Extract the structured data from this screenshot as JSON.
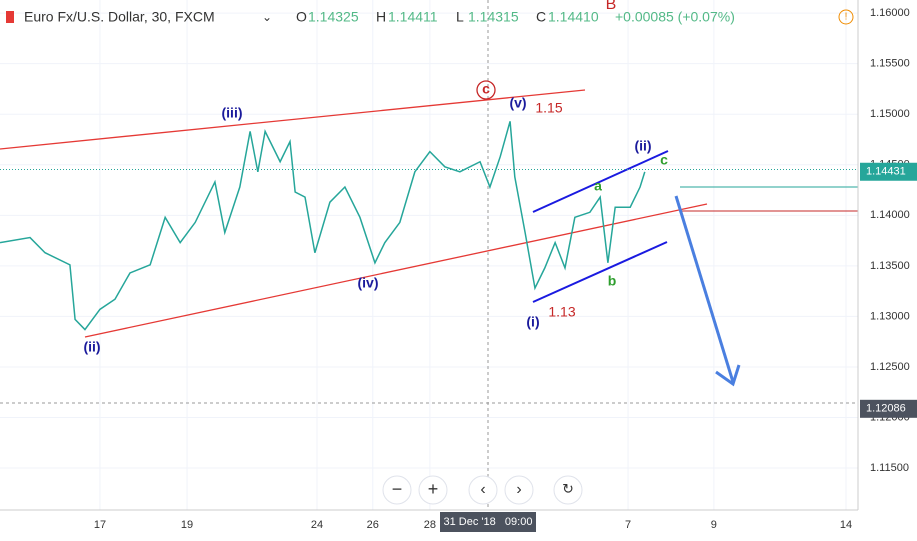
{
  "chart_data": {
    "type": "line",
    "title": "Euro Fx/U.S. Dollar, 30, FXCM",
    "ohlc": [
      {
        "label": "O",
        "value": "1.14325"
      },
      {
        "label": "H",
        "value": "1.14411"
      },
      {
        "label": "L",
        "value": "1.14315"
      },
      {
        "label": "C",
        "value": "1.14410"
      }
    ],
    "change": "+0.00085 (+0.07%)",
    "series": [
      {
        "color": "#26a69a",
        "x": [
          0,
          0.7,
          1.05,
          1.63,
          1.75,
          1.98,
          2.33,
          2.68,
          3.03,
          3.5,
          3.85,
          4.2,
          4.55,
          5.01,
          5.24,
          5.59,
          5.83,
          6.01,
          6.18,
          6.53,
          6.76,
          6.88,
          7.11,
          7.34,
          7.69,
          8.04,
          8.39,
          8.74,
          8.97,
          9.32,
          9.67,
          10.02,
          10.37,
          10.72,
          11.19,
          11.42,
          11.66,
          11.89,
          12.0,
          12.24,
          12.47,
          12.7,
          12.94,
          13.17,
          13.4,
          13.75,
          13.99,
          14.17,
          14.34,
          14.69,
          14.92,
          15.03
        ],
        "values": [
          1.1373,
          1.1378,
          1.1363,
          1.1351,
          1.1297,
          1.1287,
          1.1307,
          1.1317,
          1.1343,
          1.1351,
          1.1398,
          1.1373,
          1.1393,
          1.1433,
          1.1383,
          1.1428,
          1.1483,
          1.1443,
          1.1483,
          1.1453,
          1.1473,
          1.1423,
          1.1418,
          1.1363,
          1.1413,
          1.1428,
          1.1398,
          1.1353,
          1.1373,
          1.1393,
          1.1443,
          1.1463,
          1.1448,
          1.1443,
          1.1453,
          1.1428,
          1.1458,
          1.1493,
          1.1438,
          1.1383,
          1.1328,
          1.1348,
          1.1373,
          1.1348,
          1.1398,
          1.1403,
          1.1418,
          1.1353,
          1.1408,
          1.1408,
          1.1428,
          1.1443
        ]
      }
    ],
    "xlim": [
      0,
      20
    ],
    "xticks": [
      {
        "value": 2.33,
        "label": "17"
      },
      {
        "value": 4.36,
        "label": "19"
      },
      {
        "value": 7.39,
        "label": "24"
      },
      {
        "value": 8.69,
        "label": "26"
      },
      {
        "value": 10.02,
        "label": "28"
      },
      {
        "value": 14.64,
        "label": "7"
      },
      {
        "value": 16.64,
        "label": "9"
      },
      {
        "value": 19.72,
        "label": "14"
      }
    ],
    "ylim": [
      1.11085,
      1.1613
    ],
    "yticks": [
      {
        "value": 1.16,
        "label": "1.16000"
      },
      {
        "value": 1.155,
        "label": "1.15500"
      },
      {
        "value": 1.15,
        "label": "1.15000"
      },
      {
        "value": 1.145,
        "label": "1.14500"
      },
      {
        "value": 1.14,
        "label": "1.14000"
      },
      {
        "value": 1.135,
        "label": "1.13500"
      },
      {
        "value": 1.13,
        "label": "1.13000"
      },
      {
        "value": 1.125,
        "label": "1.12500"
      },
      {
        "value": 1.12,
        "label": "1.12000"
      },
      {
        "value": 1.115,
        "label": "1.11500"
      }
    ],
    "last_price": {
      "value": 1.14431,
      "label": "1.14431"
    },
    "crosshair_price": {
      "value": 1.12086,
      "label": "1.12086"
    },
    "crosshair_time": "31 Dec '18   09:00",
    "annotations": [
      "(iii)",
      "(v)",
      "1.15",
      "c",
      "B",
      "(ii)",
      "(iv)",
      "(i)",
      "1.13",
      "(ii)",
      "a",
      "b",
      "c"
    ]
  }
}
